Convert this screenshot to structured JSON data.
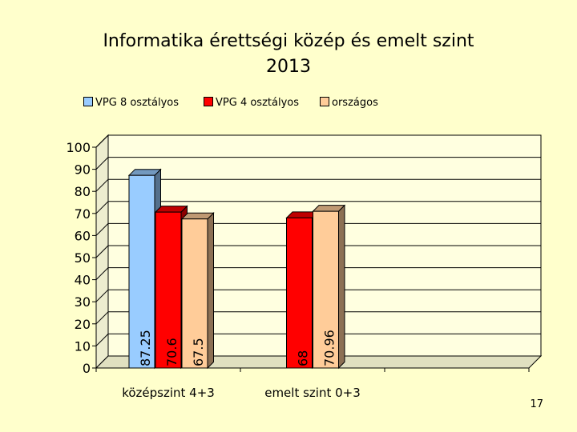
{
  "slide": {
    "title_line1": "Informatika érettségi közép és emelt szint",
    "title_line2": "2013",
    "page_number": "17"
  },
  "colors": {
    "background": "#FFFFCC",
    "plot_area": "#FFFFE0",
    "series_vpg8": "#99CCFF",
    "series_vpg4": "#FF0000",
    "series_orszagos": "#FFCC99"
  },
  "chart_data": {
    "type": "bar",
    "title": "Informatika érettségi közép és emelt szint 2013",
    "categories": [
      "középszint 4+3",
      "emelt szint 0+3",
      ""
    ],
    "series": [
      {
        "name": "VPG 8 osztályos",
        "values": [
          87.25,
          null,
          null
        ],
        "labels": [
          "87.25",
          "",
          ""
        ]
      },
      {
        "name": "VPG 4 osztályos",
        "values": [
          70.6,
          68,
          null
        ],
        "labels": [
          "70.6",
          "68",
          ""
        ]
      },
      {
        "name": "országos",
        "values": [
          67.5,
          70.96,
          null
        ],
        "labels": [
          "67.5",
          "70.96",
          ""
        ]
      }
    ],
    "ylim": [
      0,
      100
    ],
    "yticks": [
      "0",
      "10",
      "20",
      "30",
      "40",
      "50",
      "60",
      "70",
      "80",
      "90",
      "100"
    ],
    "grid": true,
    "legend_position": "top",
    "three_d": true
  }
}
